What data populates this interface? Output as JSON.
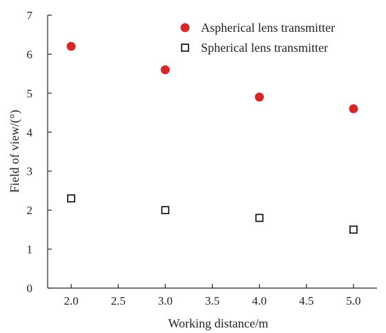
{
  "chart_data": {
    "type": "scatter",
    "title": "",
    "xlabel": "Working distance/m",
    "ylabel": "Field of view/(°)",
    "xlim": [
      1.75,
      5.25
    ],
    "ylim": [
      0,
      7
    ],
    "xticks": [
      2.0,
      2.5,
      3.0,
      3.5,
      4.0,
      4.5,
      5.0
    ],
    "xtick_labels": [
      "2.0",
      "2.5",
      "3.0",
      "3.5",
      "4.0",
      "4.5",
      "5.0"
    ],
    "yticks": [
      0,
      1,
      2,
      3,
      4,
      5,
      6,
      7
    ],
    "ytick_labels": [
      "0",
      "1",
      "2",
      "3",
      "4",
      "5",
      "6",
      "7"
    ],
    "grid": false,
    "legend_position": "top-right",
    "series": [
      {
        "name": "Aspherical lens transmitter",
        "marker": "filled-circle",
        "color": "#d62728",
        "x": [
          2.0,
          3.0,
          4.0,
          5.0
        ],
        "y": [
          6.2,
          5.6,
          4.9,
          4.6
        ]
      },
      {
        "name": "Spherical lens transmitter",
        "marker": "open-square",
        "color": "#000000",
        "x": [
          2.0,
          3.0,
          4.0,
          5.0
        ],
        "y": [
          2.3,
          2.0,
          1.8,
          1.5
        ]
      }
    ]
  }
}
